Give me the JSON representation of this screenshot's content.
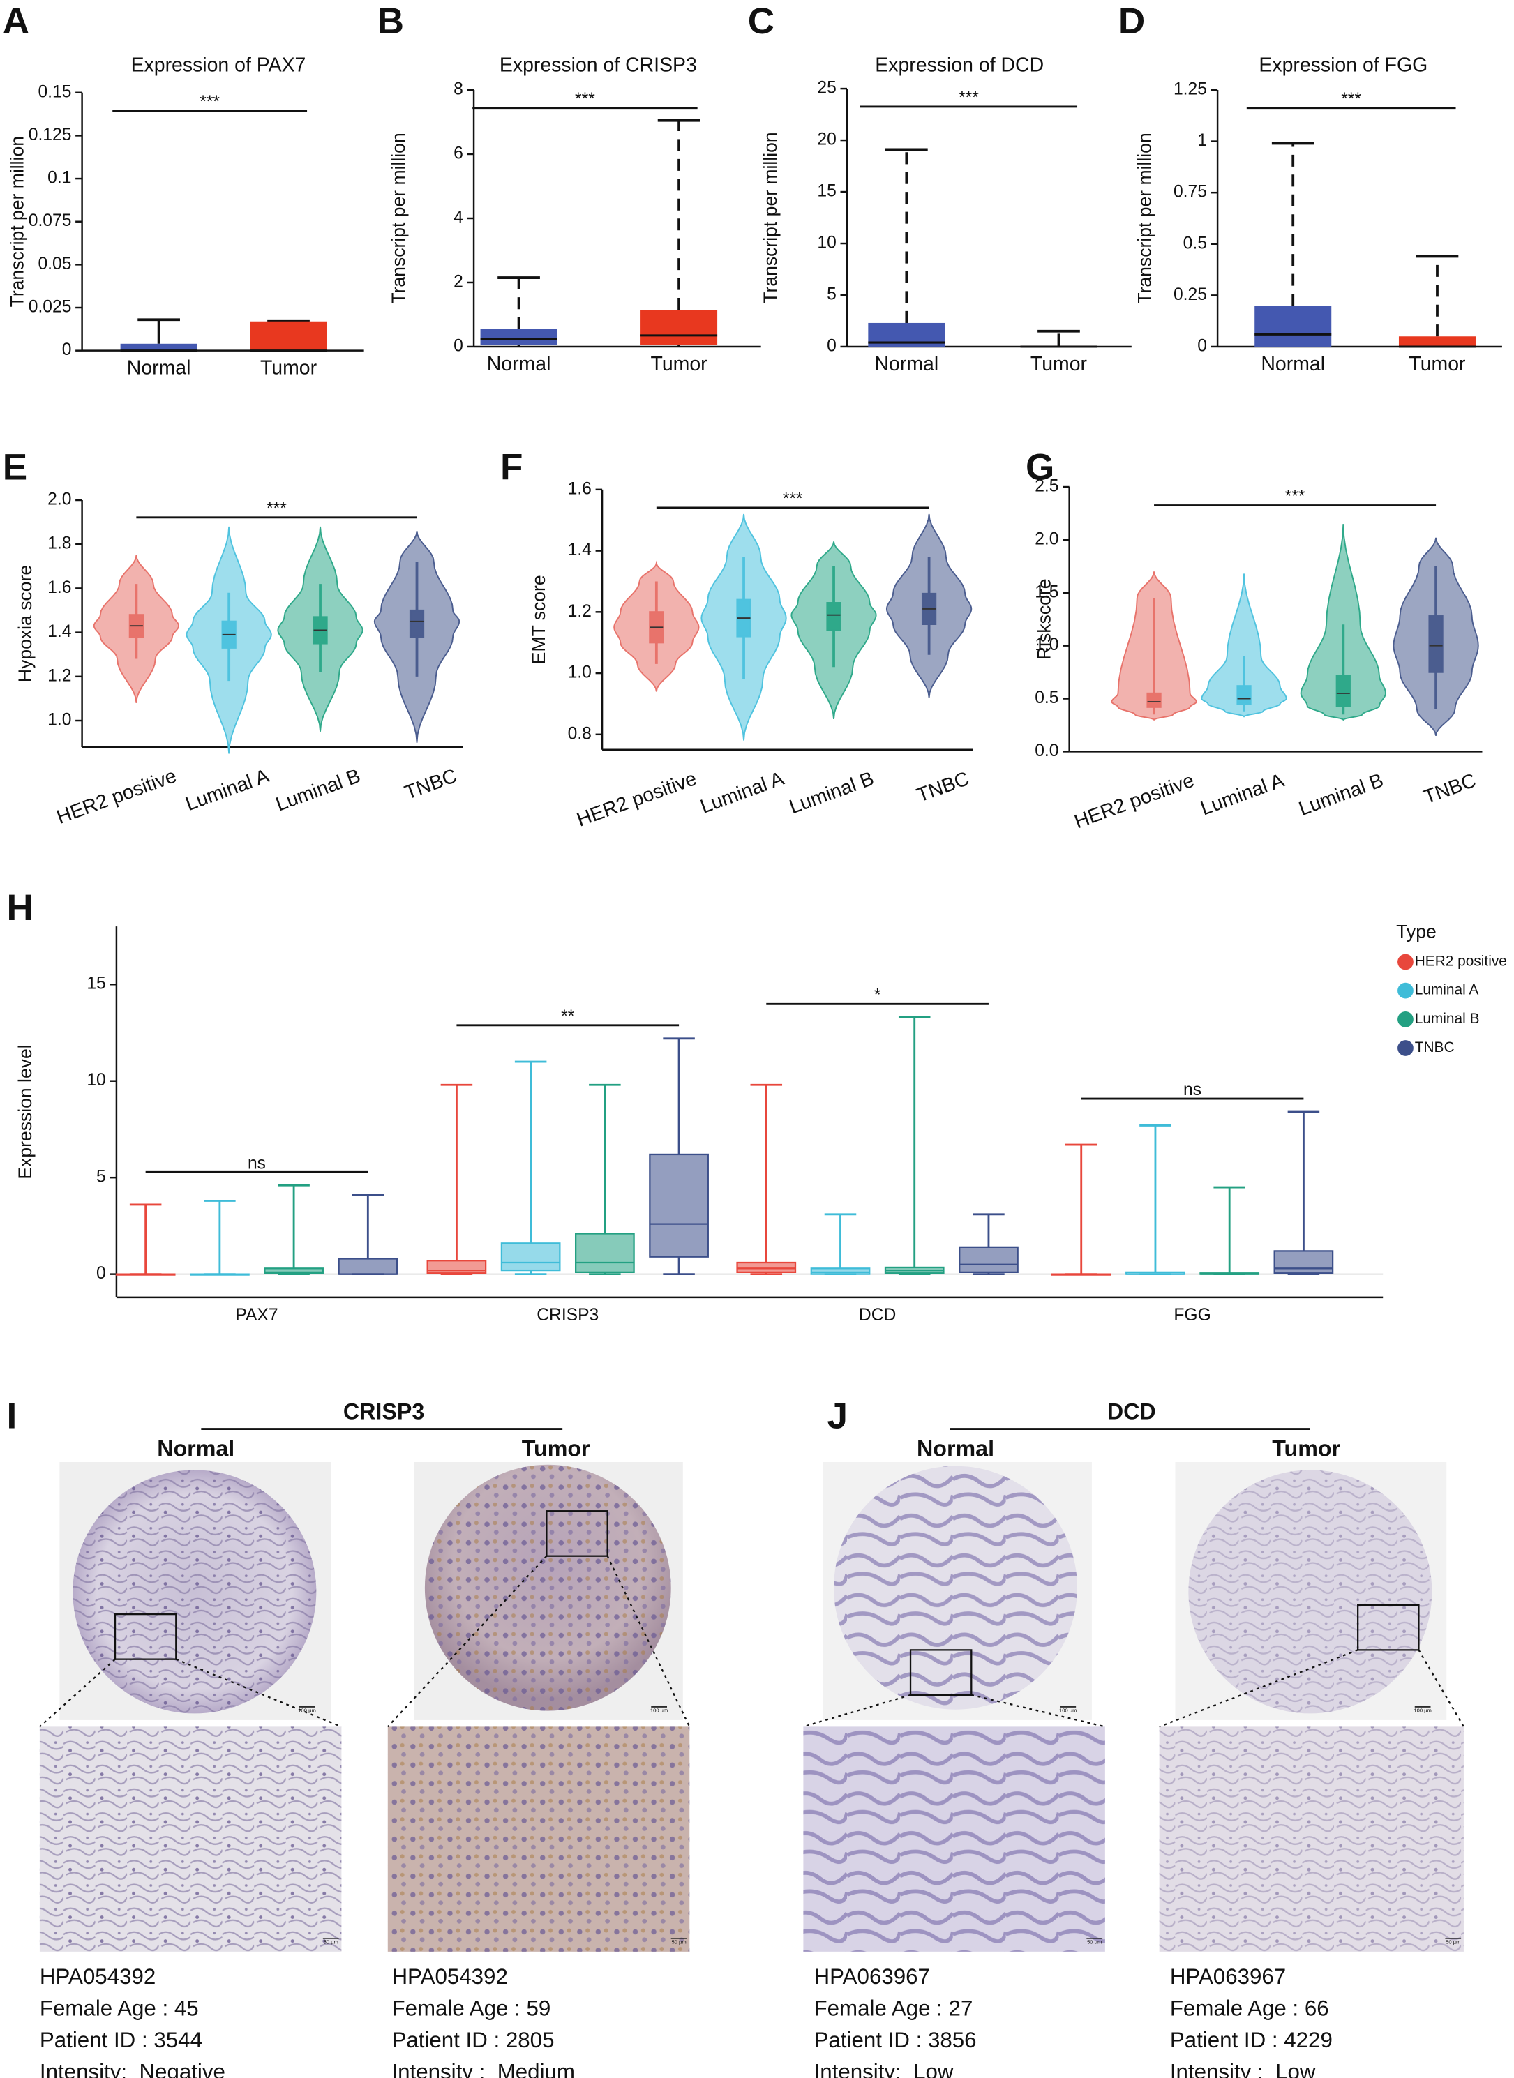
{
  "chart_data": [
    {
      "type": "box",
      "panel_label": "A",
      "title": "Expression of PAX7",
      "y_label": "Transcript per million",
      "categories": [
        "Normal",
        "Tumor"
      ],
      "colors": [
        "#4458b0",
        "#e8381f"
      ],
      "whisker_style": "solid",
      "ylim": [
        0,
        0.15
      ],
      "yticks": [
        0,
        0.025,
        0.05,
        0.075,
        0.1,
        0.125,
        0.15
      ],
      "boxes": [
        {
          "min": 0,
          "q1": 0,
          "median": 0,
          "q3": 0.004,
          "max": 0.018
        },
        {
          "min": 0,
          "q1": 0,
          "median": 0,
          "q3": 0.017,
          "max": 0.017
        }
      ],
      "significance": "***"
    },
    {
      "type": "box",
      "panel_label": "B",
      "title": "Expression of CRISP3",
      "y_label": "Transcript per million",
      "categories": [
        "Normal",
        "Tumor"
      ],
      "colors": [
        "#4458b0",
        "#e8381f"
      ],
      "whisker_style": "dashed",
      "ylim": [
        0,
        8
      ],
      "yticks": [
        0,
        2,
        4,
        6,
        8
      ],
      "boxes": [
        {
          "min": 0,
          "q1": 0.05,
          "median": 0.25,
          "q3": 0.55,
          "max": 2.15
        },
        {
          "min": 0,
          "q1": 0.05,
          "median": 0.35,
          "q3": 1.15,
          "max": 7.05
        }
      ],
      "significance": "***"
    },
    {
      "type": "box",
      "panel_label": "C",
      "title": "Expression of DCD",
      "y_label": "Transcript per million",
      "categories": [
        "Normal",
        "Tumor"
      ],
      "colors": [
        "#4458b0",
        "#e8381f"
      ],
      "whisker_style": "dashed",
      "ylim": [
        0,
        25
      ],
      "yticks": [
        0,
        5,
        10,
        15,
        20,
        25
      ],
      "boxes": [
        {
          "min": 0,
          "q1": 0,
          "median": 0.4,
          "q3": 2.3,
          "max": 19.1
        },
        {
          "min": 0,
          "q1": 0,
          "median": 0,
          "q3": 0.1,
          "max": 1.5
        }
      ],
      "significance": "***"
    },
    {
      "type": "box",
      "panel_label": "D",
      "title": "Expression of FGG",
      "y_label": "Transcript per million",
      "categories": [
        "Normal",
        "Tumor"
      ],
      "colors": [
        "#4458b0",
        "#e8381f"
      ],
      "whisker_style": "dashed",
      "ylim": [
        0,
        1.25
      ],
      "yticks": [
        0,
        0.25,
        0.5,
        0.75,
        1,
        1.25
      ],
      "boxes": [
        {
          "min": 0,
          "q1": 0,
          "median": 0.06,
          "q3": 0.2,
          "max": 0.99
        },
        {
          "min": 0,
          "q1": 0,
          "median": 0,
          "q3": 0.05,
          "max": 0.44
        }
      ],
      "significance": "***"
    },
    {
      "type": "violin",
      "panel_label": "E",
      "y_label": "Hypoxia score",
      "categories": [
        "HER2 positive",
        "Luminal A",
        "Luminal B",
        "TNBC"
      ],
      "colors": [
        "#e8736b",
        "#4fc3df",
        "#2fa98a",
        "#4b5d8f"
      ],
      "ylim": [
        0.88,
        2
      ],
      "yticks": [
        {
          "value": 1,
          "label": "1.0"
        },
        1.2,
        1.4,
        1.6,
        1.8,
        {
          "value": 2,
          "label": "2.0"
        }
      ],
      "violins": [
        {
          "min": 1.08,
          "whisker_low": 1.28,
          "q1": 1.38,
          "median": 1.43,
          "q3": 1.48,
          "whisker_high": 1.62,
          "max": 1.75
        },
        {
          "min": 0.85,
          "whisker_low": 1.18,
          "q1": 1.33,
          "median": 1.39,
          "q3": 1.45,
          "whisker_high": 1.58,
          "max": 1.88
        },
        {
          "min": 0.95,
          "whisker_low": 1.22,
          "q1": 1.35,
          "median": 1.41,
          "q3": 1.47,
          "whisker_high": 1.62,
          "max": 1.88
        },
        {
          "min": 0.9,
          "whisker_low": 1.2,
          "q1": 1.38,
          "median": 1.45,
          "q3": 1.5,
          "whisker_high": 1.72,
          "max": 1.86
        }
      ],
      "significance": "***"
    },
    {
      "type": "violin",
      "panel_label": "F",
      "y_label": "EMT score",
      "categories": [
        "HER2 positive",
        "Luminal A",
        "Luminal B",
        "TNBC"
      ],
      "colors": [
        "#e8736b",
        "#4fc3df",
        "#2fa98a",
        "#4b5d8f"
      ],
      "ylim": [
        0.75,
        1.6
      ],
      "yticks": [
        0.8,
        {
          "value": 1,
          "label": "1.0"
        },
        1.2,
        1.4,
        1.6
      ],
      "violins": [
        {
          "min": 0.94,
          "whisker_low": 1.03,
          "q1": 1.1,
          "median": 1.15,
          "q3": 1.2,
          "whisker_high": 1.3,
          "max": 1.36
        },
        {
          "min": 0.78,
          "whisker_low": 0.98,
          "q1": 1.12,
          "median": 1.18,
          "q3": 1.24,
          "whisker_high": 1.38,
          "max": 1.52
        },
        {
          "min": 0.85,
          "whisker_low": 1.02,
          "q1": 1.14,
          "median": 1.19,
          "q3": 1.23,
          "whisker_high": 1.35,
          "max": 1.43
        },
        {
          "min": 0.92,
          "whisker_low": 1.06,
          "q1": 1.16,
          "median": 1.21,
          "q3": 1.26,
          "whisker_high": 1.38,
          "max": 1.52
        }
      ],
      "significance": "***"
    },
    {
      "type": "violin",
      "panel_label": "G",
      "y_label": "Riskscore",
      "categories": [
        "HER2 positive",
        "Luminal A",
        "Luminal B",
        "TNBC"
      ],
      "colors": [
        "#e8736b",
        "#4fc3df",
        "#2fa98a",
        "#4b5d8f"
      ],
      "ylim": [
        0,
        2.5
      ],
      "yticks": [
        {
          "value": 0,
          "label": "0.0"
        },
        0.5,
        {
          "value": 1,
          "label": "1.0"
        },
        1.5,
        {
          "value": 2,
          "label": "2.0"
        },
        2.5
      ],
      "violins": [
        {
          "min": 0.3,
          "whisker_low": 0.35,
          "q1": 0.42,
          "median": 0.47,
          "q3": 0.55,
          "whisker_high": 1.45,
          "max": 1.7
        },
        {
          "min": 0.33,
          "whisker_low": 0.38,
          "q1": 0.45,
          "median": 0.5,
          "q3": 0.62,
          "whisker_high": 0.9,
          "max": 1.68
        },
        {
          "min": 0.3,
          "whisker_low": 0.35,
          "q1": 0.43,
          "median": 0.55,
          "q3": 0.72,
          "whisker_high": 1.2,
          "max": 2.15
        },
        {
          "min": 0.15,
          "whisker_low": 0.4,
          "q1": 0.75,
          "median": 1,
          "q3": 1.28,
          "whisker_high": 1.75,
          "max": 2.02
        }
      ],
      "significance": "***"
    },
    {
      "type": "grouped_box",
      "panel_label": "H",
      "y_label": "Expression level",
      "legend_title": "Type",
      "categories": [
        "PAX7",
        "CRISP3",
        "DCD",
        "FGG"
      ],
      "ylim": [
        -1.2,
        18
      ],
      "yticks": [
        0,
        5,
        10,
        15
      ],
      "series": [
        {
          "name": "HER2 positive",
          "color": "#e8473c",
          "boxes": [
            {
              "min": 0,
              "q1": 0,
              "median": 0,
              "q3": 0,
              "max": 3.6
            },
            {
              "min": 0,
              "q1": 0.05,
              "median": 0.2,
              "q3": 0.7,
              "max": 9.8
            },
            {
              "min": 0,
              "q1": 0.1,
              "median": 0.3,
              "q3": 0.6,
              "max": 9.8
            },
            {
              "min": 0,
              "q1": 0,
              "median": 0,
              "q3": 0,
              "max": 6.7
            }
          ]
        },
        {
          "name": "Luminal A",
          "color": "#3fbcd8",
          "boxes": [
            {
              "min": 0,
              "q1": 0,
              "median": 0,
              "q3": 0,
              "max": 3.8
            },
            {
              "min": 0,
              "q1": 0.2,
              "median": 0.6,
              "q3": 1.6,
              "max": 11
            },
            {
              "min": 0,
              "q1": 0,
              "median": 0.1,
              "q3": 0.3,
              "max": 3.1
            },
            {
              "min": 0,
              "q1": 0,
              "median": 0,
              "q3": 0.1,
              "max": 7.7
            }
          ]
        },
        {
          "name": "Luminal B",
          "color": "#23a082",
          "boxes": [
            {
              "min": 0,
              "q1": 0.05,
              "median": 0.1,
              "q3": 0.3,
              "max": 4.6
            },
            {
              "min": 0,
              "q1": 0.1,
              "median": 0.6,
              "q3": 2.1,
              "max": 9.8
            },
            {
              "min": 0,
              "q1": 0.05,
              "median": 0.2,
              "q3": 0.35,
              "max": 13.3
            },
            {
              "min": 0,
              "q1": 0,
              "median": 0,
              "q3": 0.05,
              "max": 4.5
            }
          ]
        },
        {
          "name": "TNBC",
          "color": "#3c4f8a",
          "boxes": [
            {
              "min": 0,
              "q1": 0,
              "median": 0,
              "q3": 0.8,
              "max": 4.1
            },
            {
              "min": 0,
              "q1": 0.9,
              "median": 2.6,
              "q3": 6.2,
              "max": 12.2
            },
            {
              "min": 0,
              "q1": 0.1,
              "median": 0.5,
              "q3": 1.4,
              "max": 3.1
            },
            {
              "min": 0,
              "q1": 0.05,
              "median": 0.3,
              "q3": 1.2,
              "max": 8.4
            }
          ]
        }
      ],
      "significance": [
        "ns",
        "**",
        "*",
        "ns"
      ]
    }
  ],
  "ihc": [
    {
      "panel_label": "I",
      "gene": "CRISP3",
      "samples": [
        {
          "condition": "Normal",
          "scale_tissue": "100 µm",
          "scale_zoom": "50 µm",
          "lines": [
            "HPA054392",
            "Female Age : 45",
            "Patient ID : 3544",
            "Intensity:  Negative"
          ]
        },
        {
          "condition": "Tumor",
          "scale_tissue": "100 µm",
          "scale_zoom": "50 µm",
          "lines": [
            "HPA054392",
            "Female Age : 59",
            "Patient ID : 2805",
            "Intensity :  Medium"
          ]
        }
      ]
    },
    {
      "panel_label": "J",
      "gene": "DCD",
      "samples": [
        {
          "condition": "Normal",
          "scale_tissue": "100 µm",
          "scale_zoom": "50 µm",
          "lines": [
            "HPA063967",
            "Female Age : 27",
            "Patient ID : 3856",
            "Intensity:  Low"
          ]
        },
        {
          "condition": "Tumor",
          "scale_tissue": "100 µm",
          "scale_zoom": "50 µm",
          "lines": [
            "HPA063967",
            "Female Age : 66",
            "Patient ID : 4229",
            "Intensity :  Low"
          ]
        }
      ]
    }
  ]
}
